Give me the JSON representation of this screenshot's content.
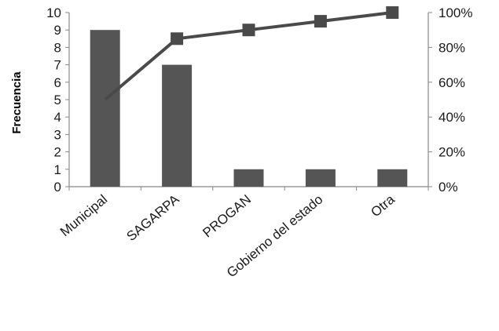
{
  "chart_data": {
    "type": "bar",
    "title": "",
    "xlabel": "",
    "ylabel": "Frecuencia",
    "categories": [
      "Municipal",
      "SAGARPA",
      "PROGAN",
      "Gobierno del estado",
      "Otra"
    ],
    "series": [
      {
        "type": "bar",
        "values": [
          9,
          7,
          1,
          1,
          1
        ],
        "color": "#555555"
      },
      {
        "type": "line",
        "axis": "right",
        "values": [
          0.5,
          0.85,
          0.9,
          0.95,
          1.0
        ],
        "color": "#4a4a4a"
      }
    ],
    "ylim": [
      0,
      10
    ],
    "yticks": [
      0,
      1,
      2,
      3,
      4,
      5,
      6,
      7,
      8,
      9,
      10
    ],
    "y2lim": [
      0,
      1
    ],
    "y2ticks": [
      0,
      0.2,
      0.4,
      0.6,
      0.8,
      1.0
    ],
    "y2tick_labels": [
      "0%",
      "20%",
      "40%",
      "60%",
      "80%",
      "100%"
    ],
    "grid": false,
    "legend": "none"
  }
}
